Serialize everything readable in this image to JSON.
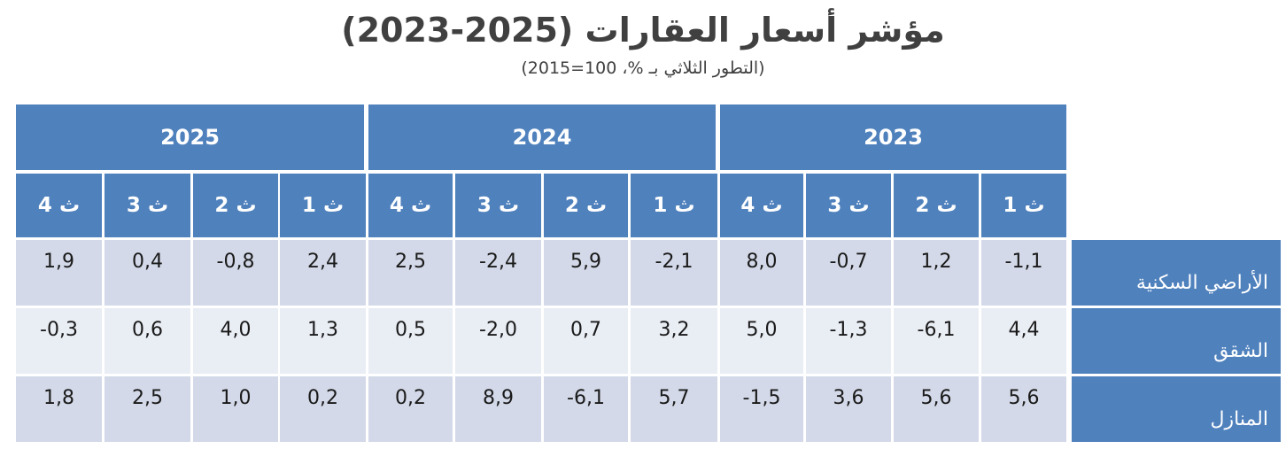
{
  "chart_data": {
    "type": "table",
    "title": "مؤشر أسعار العقارات (2025-2023)",
    "subtitle": "(التطور الثلاثي بـ %، 100=2015)",
    "years": [
      "2025",
      "2024",
      "2023"
    ],
    "quarters": [
      "ث 4",
      "ث 3",
      "ث 2",
      "ث 1",
      "ث 4",
      "ث 3",
      "ث 2",
      "ث 1",
      "ث 4",
      "ث 3",
      "ث 2",
      "ث 1"
    ],
    "rows": [
      {
        "label": "الأراضي السكنية",
        "values": [
          "1,9",
          "0,4",
          "-0,8",
          "2,4",
          "2,5",
          "-2,4",
          "5,9",
          "-2,1",
          "8,0",
          "-0,7",
          "1,2",
          "-1,1"
        ]
      },
      {
        "label": "الشقق",
        "values": [
          "-0,3",
          "0,6",
          "4,0",
          "1,3",
          "0,5",
          "-2,0",
          "0,7",
          "3,2",
          "5,0",
          "-1,3",
          "-6,1",
          "4,4"
        ]
      },
      {
        "label": "المنازل",
        "values": [
          "1,8",
          "2,5",
          "1,0",
          "0,2",
          "0,2",
          "8,9",
          "-6,1",
          "5,7",
          "-1,5",
          "3,6",
          "5,6",
          "5,6"
        ]
      }
    ]
  }
}
